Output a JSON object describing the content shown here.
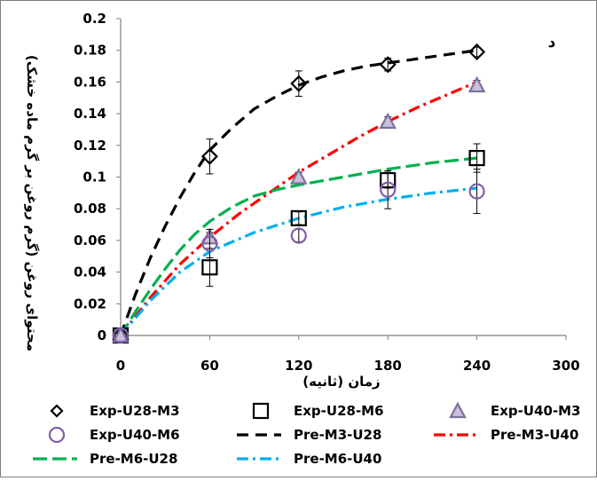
{
  "chart_data": {
    "type": "scatter",
    "title": "",
    "panel_label": "د",
    "xlabel": "زمان (ثانیه)",
    "ylabel": "محتوای روغن (گرم روغن بر گرم ماده خشک)",
    "xlim": [
      0,
      300
    ],
    "ylim": [
      0,
      0.2
    ],
    "x_ticks": [
      "0",
      "60",
      "120",
      "180",
      "240",
      "300"
    ],
    "y_ticks": [
      "0",
      "0.02",
      "0.04",
      "0.06",
      "0.08",
      "0.1",
      "0.12",
      "0.14",
      "0.16",
      "0.18",
      "0.2"
    ],
    "grid": false,
    "legend_position": "bottom",
    "series": [
      {
        "name": "Exp-U28-M3",
        "kind": "points",
        "marker": "diamond",
        "color": "#000000",
        "x": [
          0,
          60,
          120,
          180,
          240
        ],
        "y": [
          0,
          0.113,
          0.159,
          0.171,
          0.179
        ],
        "err": [
          0,
          0.011,
          0.008,
          0.004,
          0.003
        ]
      },
      {
        "name": "Exp-U28-M6",
        "kind": "points",
        "marker": "square",
        "color": "#000000",
        "x": [
          0,
          60,
          120,
          180,
          240
        ],
        "y": [
          0,
          0.043,
          0.074,
          0.098,
          0.112
        ],
        "err": [
          0,
          0.012,
          0.004,
          0.005,
          0.009
        ]
      },
      {
        "name": "Exp-U40-M3",
        "kind": "points",
        "marker": "triangle",
        "color": "#7f6f9f",
        "x": [
          0,
          60,
          120,
          180,
          240
        ],
        "y": [
          0,
          0.062,
          0.1,
          0.135,
          0.158
        ],
        "err": [
          0,
          0.003,
          0.003,
          0.003,
          0.003
        ]
      },
      {
        "name": "Exp-U40-M6",
        "kind": "points",
        "marker": "circle",
        "color": "#7f5fa5",
        "x": [
          0,
          60,
          120,
          180,
          240
        ],
        "y": [
          0,
          0.058,
          0.063,
          0.092,
          0.091
        ],
        "err": [
          0,
          0.009,
          0.004,
          0.012,
          0.014
        ]
      },
      {
        "name": "Pre-M3-U28",
        "kind": "line",
        "dash": "dash",
        "color": "#000000",
        "x": [
          0,
          10,
          20,
          30,
          40,
          50,
          60,
          75,
          90,
          105,
          120,
          135,
          150,
          165,
          180,
          195,
          210,
          225,
          240
        ],
        "y": [
          0,
          0.026,
          0.049,
          0.069,
          0.087,
          0.103,
          0.117,
          0.131,
          0.143,
          0.151,
          0.158,
          0.163,
          0.167,
          0.17,
          0.172,
          0.174,
          0.176,
          0.178,
          0.18
        ]
      },
      {
        "name": "Pre-M3-U40",
        "kind": "line",
        "dash": "dashdot",
        "color": "#ff0000",
        "x": [
          0,
          20,
          40,
          60,
          80,
          100,
          120,
          140,
          160,
          180,
          200,
          220,
          240
        ],
        "y": [
          0,
          0.024,
          0.045,
          0.062,
          0.077,
          0.09,
          0.103,
          0.114,
          0.125,
          0.135,
          0.144,
          0.152,
          0.16
        ]
      },
      {
        "name": "Pre-M6-U28",
        "kind": "line",
        "dash": "longdash",
        "color": "#00b050",
        "x": [
          0,
          10,
          20,
          30,
          40,
          50,
          60,
          75,
          90,
          105,
          120,
          150,
          180,
          210,
          240
        ],
        "y": [
          0,
          0.015,
          0.029,
          0.042,
          0.054,
          0.064,
          0.072,
          0.081,
          0.088,
          0.092,
          0.095,
          0.1,
          0.105,
          0.109,
          0.112
        ]
      },
      {
        "name": "Pre-M6-U40",
        "kind": "line",
        "dash": "dashdot",
        "color": "#00b0f0",
        "x": [
          0,
          20,
          40,
          60,
          90,
          120,
          150,
          180,
          210,
          240
        ],
        "y": [
          0,
          0.022,
          0.04,
          0.053,
          0.065,
          0.074,
          0.081,
          0.086,
          0.09,
          0.093
        ]
      }
    ]
  }
}
